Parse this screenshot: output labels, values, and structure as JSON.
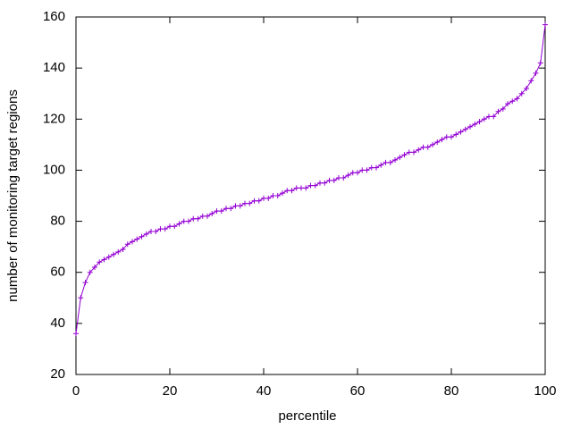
{
  "chart_data": {
    "type": "line",
    "xlabel": "percentile",
    "ylabel": "number of monitoring target regions",
    "x": [
      0,
      1,
      2,
      3,
      4,
      5,
      6,
      7,
      8,
      9,
      10,
      11,
      12,
      13,
      14,
      15,
      16,
      17,
      18,
      19,
      20,
      21,
      22,
      23,
      24,
      25,
      26,
      27,
      28,
      29,
      30,
      31,
      32,
      33,
      34,
      35,
      36,
      37,
      38,
      39,
      40,
      41,
      42,
      43,
      44,
      45,
      46,
      47,
      48,
      49,
      50,
      51,
      52,
      53,
      54,
      55,
      56,
      57,
      58,
      59,
      60,
      61,
      62,
      63,
      64,
      65,
      66,
      67,
      68,
      69,
      70,
      71,
      72,
      73,
      74,
      75,
      76,
      77,
      78,
      79,
      80,
      81,
      82,
      83,
      84,
      85,
      86,
      87,
      88,
      89,
      90,
      91,
      92,
      93,
      94,
      95,
      96,
      97,
      98,
      99,
      100
    ],
    "series": [
      {
        "color": "#9400d3",
        "values": [
          36,
          50,
          56,
          60,
          62,
          64,
          65,
          66,
          67,
          68,
          69,
          71,
          72,
          73,
          74,
          75,
          76,
          76,
          77,
          77,
          78,
          78,
          79,
          80,
          80,
          81,
          81,
          82,
          82,
          83,
          84,
          84,
          85,
          85,
          86,
          86,
          87,
          87,
          88,
          88,
          89,
          89,
          90,
          90,
          91,
          92,
          92,
          93,
          93,
          93,
          94,
          94,
          95,
          95,
          96,
          96,
          97,
          97,
          98,
          99,
          99,
          100,
          100,
          101,
          101,
          102,
          103,
          103,
          104,
          105,
          106,
          107,
          107,
          108,
          109,
          109,
          110,
          111,
          112,
          113,
          113,
          114,
          115,
          116,
          117,
          118,
          119,
          120,
          121,
          121,
          123,
          124,
          126,
          127,
          128,
          130,
          132,
          135,
          138,
          142,
          157
        ]
      }
    ],
    "xlim": [
      0,
      100
    ],
    "ylim": [
      20,
      160
    ],
    "xticks": [
      0,
      20,
      40,
      60,
      80,
      100
    ],
    "yticks": [
      20,
      40,
      60,
      80,
      100,
      120,
      140,
      160
    ],
    "grid": false
  }
}
